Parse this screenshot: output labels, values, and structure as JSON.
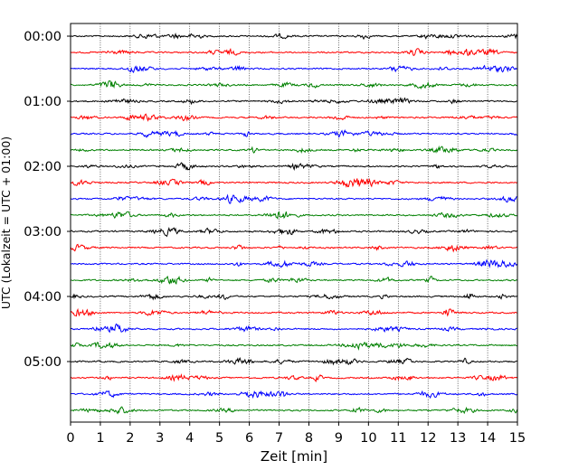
{
  "chart_data": {
    "type": "line",
    "title": "",
    "xlabel": "Zeit  [min]",
    "ylabel": "UTC (Lokalzeit = UTC + 01:00)",
    "xlim": [
      0,
      15
    ],
    "xticks": [
      0,
      1,
      2,
      3,
      4,
      5,
      6,
      7,
      8,
      9,
      10,
      11,
      12,
      13,
      14,
      15
    ],
    "yticklabels": [
      "00:00",
      "01:00",
      "02:00",
      "03:00",
      "04:00",
      "05:00"
    ],
    "trace_start_times": [
      "00:00",
      "00:15",
      "00:30",
      "00:45",
      "01:00",
      "01:15",
      "01:30",
      "01:45",
      "02:00",
      "02:15",
      "02:30",
      "02:45",
      "03:00",
      "03:15",
      "03:30",
      "03:45",
      "04:00",
      "04:15",
      "04:30",
      "04:45",
      "05:00",
      "05:15",
      "05:30",
      "05:45"
    ],
    "trace_colors": [
      "#000000",
      "#ff0000",
      "#0000ff",
      "#008000"
    ],
    "x_grid": "dotted",
    "legend": "none"
  }
}
